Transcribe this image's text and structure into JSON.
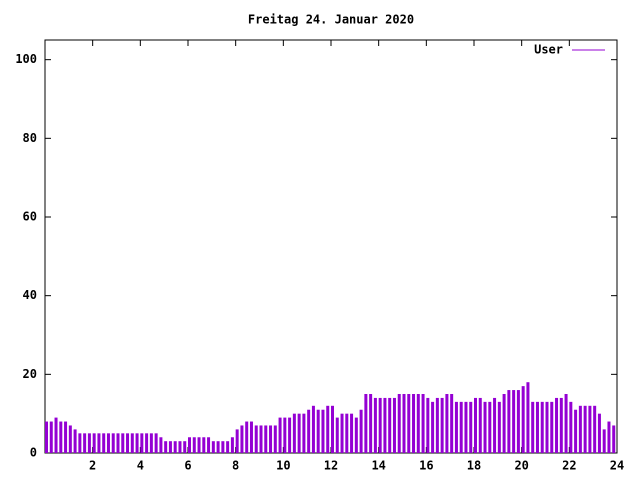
{
  "chart_data": {
    "type": "impulse",
    "title": "Freitag 24. Januar 2020",
    "x": [
      0,
      0.2,
      0.4,
      0.6,
      0.8,
      1,
      1.2,
      1.4,
      1.6,
      1.8,
      2,
      2.2,
      2.4,
      2.6,
      2.8,
      3,
      3.2,
      3.4,
      3.6,
      3.8,
      4,
      4.2,
      4.4,
      4.6,
      4.8,
      5,
      5.2,
      5.4,
      5.6,
      5.8,
      6,
      6.2,
      6.4,
      6.6,
      6.8,
      7,
      7.2,
      7.4,
      7.6,
      7.8,
      8,
      8.2,
      8.4,
      8.6,
      8.8,
      9,
      9.2,
      9.4,
      9.6,
      9.8,
      10,
      10.2,
      10.4,
      10.6,
      10.8,
      11,
      11.2,
      11.4,
      11.6,
      11.8,
      12,
      12.2,
      12.4,
      12.6,
      12.8,
      13,
      13.2,
      13.4,
      13.6,
      13.8,
      14,
      14.2,
      14.4,
      14.6,
      14.8,
      15,
      15.2,
      15.4,
      15.6,
      15.8,
      16,
      16.2,
      16.4,
      16.6,
      16.8,
      17,
      17.2,
      17.4,
      17.6,
      17.8,
      18,
      18.2,
      18.4,
      18.6,
      18.8,
      19,
      19.2,
      19.4,
      19.6,
      19.8,
      20,
      20.2,
      20.4,
      20.6,
      20.8,
      21,
      21.2,
      21.4,
      21.6,
      21.8,
      22,
      22.2,
      22.4,
      22.6,
      22.8,
      23,
      23.2,
      23.4,
      23.6,
      23.8
    ],
    "series": [
      {
        "name": "User",
        "color": "#9400d3",
        "values": [
          8,
          8,
          9,
          8,
          8,
          7,
          6,
          5,
          5,
          5,
          5,
          5,
          5,
          5,
          5,
          5,
          5,
          5,
          5,
          5,
          5,
          5,
          5,
          5,
          4,
          3,
          3,
          3,
          3,
          3,
          4,
          4,
          4,
          4,
          4,
          3,
          3,
          3,
          3,
          4,
          6,
          7,
          8,
          8,
          7,
          7,
          7,
          7,
          7,
          9,
          9,
          9,
          10,
          10,
          10,
          11,
          12,
          11,
          11,
          12,
          12,
          9,
          10,
          10,
          10,
          9,
          11,
          15,
          15,
          14,
          14,
          14,
          14,
          14,
          15,
          15,
          15,
          15,
          15,
          15,
          14,
          13,
          14,
          14,
          15,
          15,
          13,
          13,
          13,
          13,
          14,
          14,
          13,
          13,
          14,
          13,
          15,
          16,
          16,
          16,
          17,
          18,
          13,
          13,
          13,
          13,
          13,
          14,
          14,
          15,
          13,
          11,
          12,
          12,
          12,
          12,
          10,
          6,
          8,
          7
        ]
      }
    ],
    "xlim": [
      0,
      24
    ],
    "xticks": [
      2,
      4,
      6,
      8,
      10,
      12,
      14,
      16,
      18,
      20,
      22,
      24
    ],
    "ylim": [
      0,
      105
    ],
    "yticks": [
      0,
      20,
      40,
      60,
      80,
      100
    ],
    "legend": "upper right"
  }
}
